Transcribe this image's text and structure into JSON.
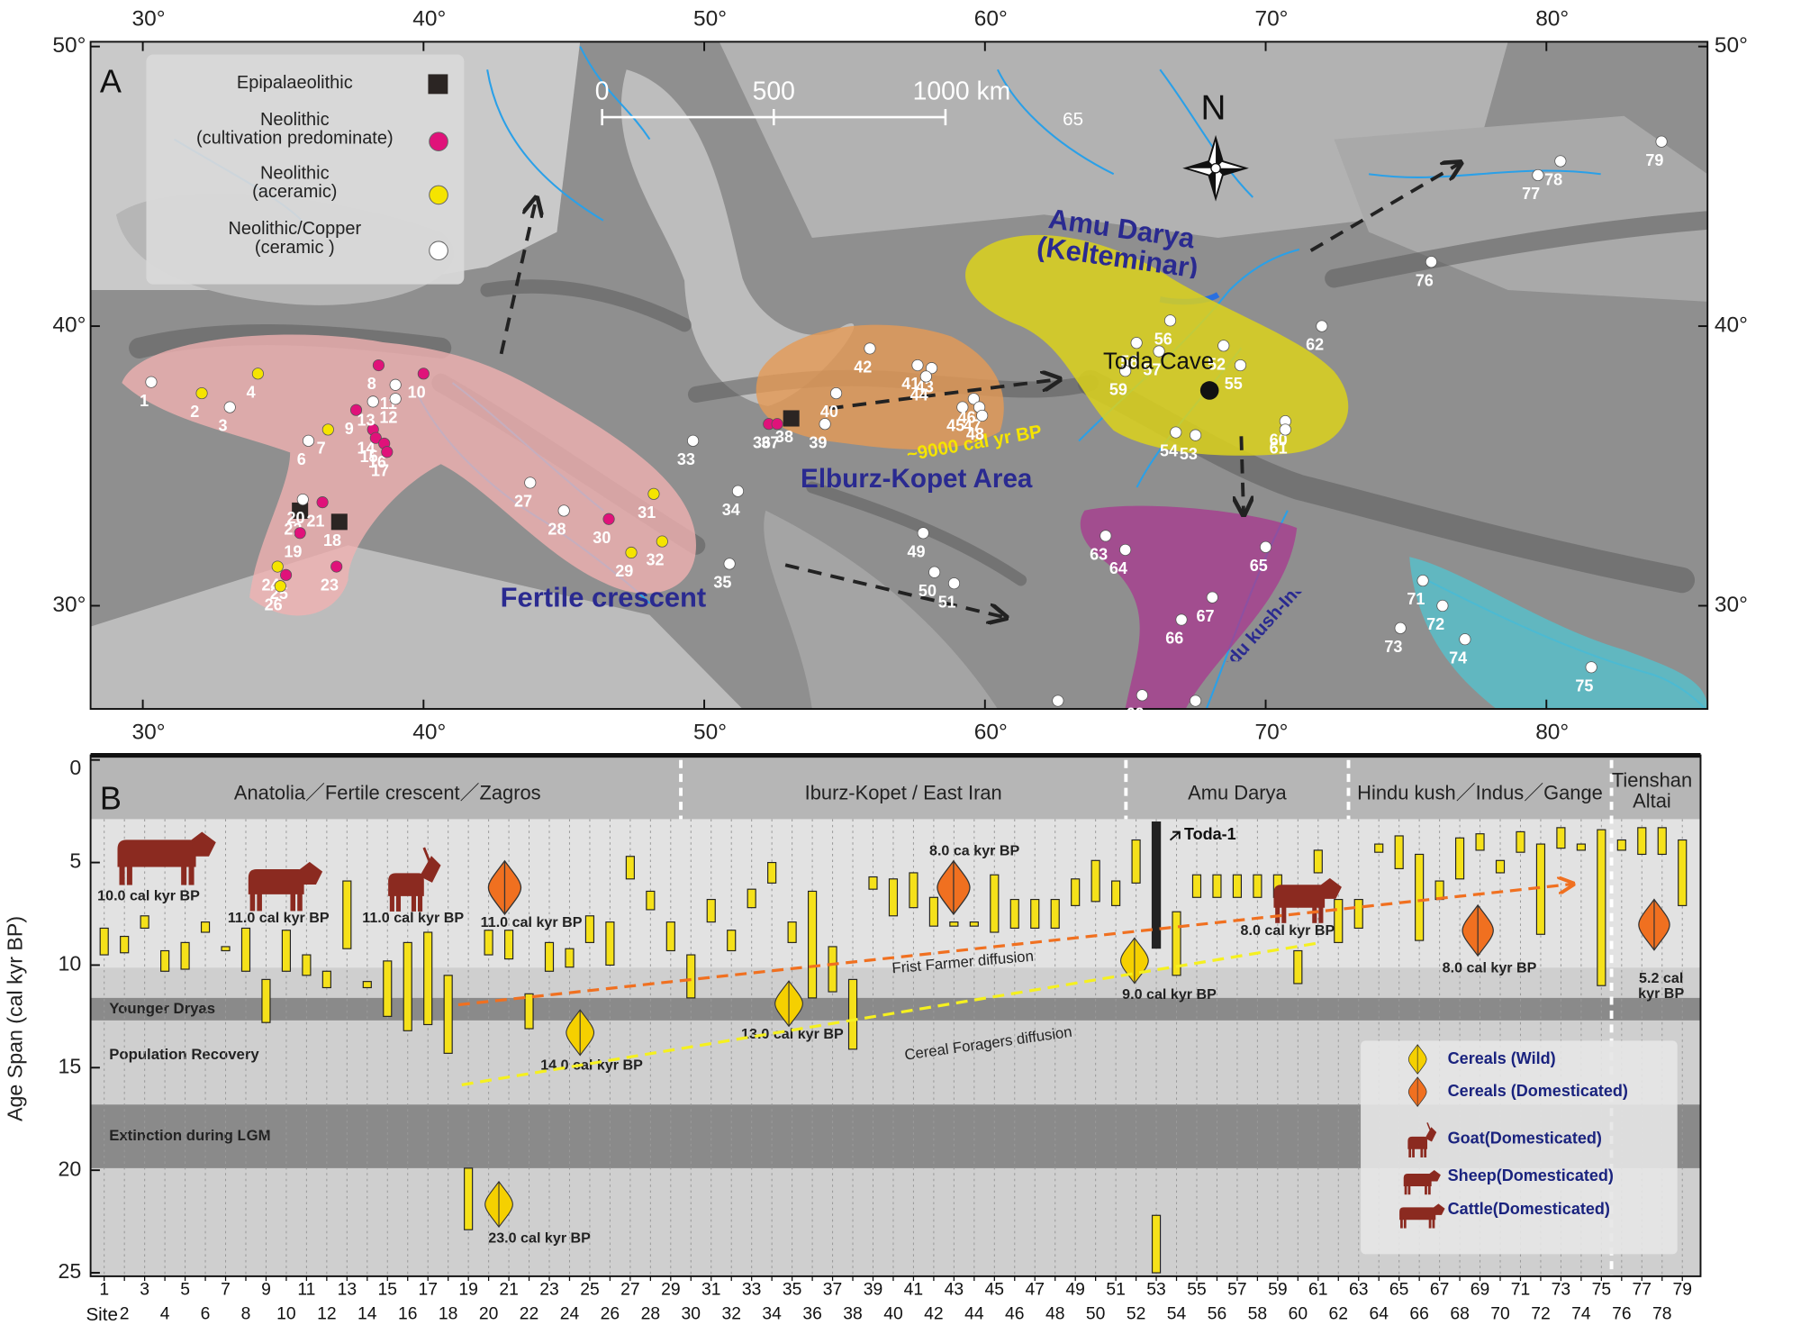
{
  "chart_data": [
    {
      "type": "scatter",
      "panel": "A",
      "xlim": [
        28.14,
        85.74
      ],
      "ylim": [
        26.31,
        50.17
      ],
      "xticks": [
        {
          "value": 30,
          "label": "30°"
        },
        {
          "value": 40,
          "label": "40°"
        },
        {
          "value": 50,
          "label": "50°"
        },
        {
          "value": 60,
          "label": "60°"
        },
        {
          "value": 70,
          "label": "70°"
        },
        {
          "value": 80,
          "label": "80°"
        }
      ],
      "yticks": [
        {
          "value": 30,
          "label": "30°"
        },
        {
          "value": 40,
          "label": "40°"
        },
        {
          "value": 50,
          "label": "50°"
        }
      ],
      "series": [
        {
          "name": "Epipalaeolithic",
          "color": "#2b2523",
          "marker": "square",
          "sites": [
            18,
            22,
            38
          ],
          "x": [
            37.0,
            35.6,
            53.1
          ],
          "y": [
            33.0,
            33.4,
            36.7
          ]
        },
        {
          "name": "Neolithic\n(cultivation predominate)",
          "color": "#e0127a",
          "marker": "circle",
          "sites": [
            8,
            9,
            10,
            14,
            15,
            16,
            17,
            19,
            21,
            23,
            25,
            30,
            36,
            37
          ],
          "x": [
            38.4,
            37.6,
            40.0,
            38.2,
            38.3,
            38.6,
            38.7,
            35.6,
            36.4,
            36.9,
            35.1,
            46.6,
            52.3,
            52.6
          ],
          "y": [
            38.6,
            37.0,
            38.3,
            36.3,
            36.0,
            35.8,
            35.5,
            32.6,
            33.7,
            31.4,
            31.1,
            33.1,
            36.5,
            36.5
          ]
        },
        {
          "name": "Neolithic\n(aceramic)",
          "color": "#f5e400",
          "marker": "circle",
          "sites": [
            2,
            4,
            7,
            24,
            26,
            29,
            31,
            32
          ],
          "x": [
            32.1,
            34.1,
            36.6,
            34.8,
            34.9,
            47.4,
            48.2,
            48.5
          ],
          "y": [
            37.6,
            38.3,
            36.3,
            31.4,
            30.7,
            31.9,
            34.0,
            32.3
          ]
        },
        {
          "name": "Neolithic/Copper\n(ceramic )",
          "color": "#ffffff",
          "marker": "circle",
          "sites": [
            1,
            3,
            6,
            11,
            12,
            13,
            20,
            27,
            28,
            33,
            34,
            35,
            39,
            40,
            41,
            42,
            43,
            44,
            45,
            46,
            47,
            48,
            49,
            50,
            51,
            52,
            53,
            54,
            55,
            56,
            57,
            58,
            59,
            60,
            61,
            62,
            63,
            64,
            65,
            66,
            67,
            68,
            69,
            70,
            71,
            72,
            73,
            74,
            75,
            76,
            77,
            78,
            79
          ],
          "x": [
            30.3,
            33.1,
            35.9,
            39.0,
            39.0,
            38.2,
            35.7,
            43.8,
            45.0,
            49.6,
            51.2,
            50.9,
            54.3,
            54.7,
            57.6,
            55.9,
            58.1,
            57.9,
            59.2,
            59.6,
            59.8,
            59.9,
            57.8,
            58.2,
            58.9,
            68.5,
            67.5,
            66.8,
            69.1,
            66.6,
            66.2,
            65.4,
            65.0,
            70.7,
            70.7,
            72.0,
            64.3,
            65.0,
            70.0,
            67.0,
            68.1,
            62.6,
            65.6,
            67.5,
            75.6,
            76.3,
            74.8,
            77.1,
            81.6,
            75.9,
            79.7,
            80.5,
            84.1
          ],
          "y": [
            38.0,
            37.1,
            35.9,
            37.9,
            37.4,
            37.3,
            33.8,
            34.4,
            33.4,
            35.9,
            34.1,
            31.5,
            36.5,
            37.6,
            38.6,
            39.2,
            38.5,
            38.2,
            37.1,
            37.4,
            37.1,
            36.8,
            32.6,
            31.2,
            30.8,
            39.3,
            36.1,
            36.2,
            38.6,
            40.2,
            39.1,
            39.4,
            38.4,
            36.6,
            36.3,
            40.0,
            32.5,
            32.0,
            32.1,
            29.5,
            30.3,
            26.6,
            26.8,
            26.6,
            30.9,
            30.0,
            29.2,
            28.8,
            27.8,
            42.3,
            45.4,
            45.9,
            46.6
          ]
        }
      ],
      "toda_cave": {
        "label": "Toda  Cave",
        "x": 68.0,
        "y": 37.7
      },
      "scale_bar": [
        0,
        500,
        {
          "value": 1000,
          "label": "1000 km"
        }
      ],
      "north": "N",
      "annotations": [
        "Fertile crescent",
        "Elburz-Kopet  Area",
        "Amu Darya\n(Kelteminar)",
        "Hindu kush-Indus",
        "~9000 cal yr BP",
        "65"
      ]
    },
    {
      "type": "range",
      "panel": "B",
      "x_label": "Site",
      "y_label": "Age Span (cal kyr BP)",
      "ylim": [
        0,
        25
      ],
      "yticks": [
        0,
        5,
        10,
        15,
        20,
        25
      ],
      "color": "#f5e11a",
      "categories": [
        1,
        2,
        3,
        4,
        5,
        6,
        7,
        8,
        9,
        10,
        11,
        12,
        13,
        14,
        15,
        16,
        17,
        18,
        19,
        20,
        21,
        22,
        23,
        24,
        25,
        26,
        27,
        28,
        29,
        30,
        31,
        32,
        33,
        34,
        35,
        36,
        37,
        38,
        39,
        40,
        41,
        42,
        43,
        44,
        45,
        46,
        47,
        48,
        49,
        50,
        51,
        52,
        53,
        54,
        55,
        56,
        57,
        58,
        59,
        60,
        61,
        62,
        63,
        64,
        65,
        66,
        67,
        68,
        69,
        70,
        71,
        72,
        73,
        74,
        75,
        76,
        77,
        78,
        79
      ],
      "start": [
        8.2,
        8.6,
        7.6,
        9.3,
        8.9,
        7.9,
        9.1,
        8.2,
        10.7,
        8.3,
        9.5,
        10.3,
        5.9,
        10.8,
        9.8,
        8.9,
        8.4,
        10.5,
        19.9,
        8.3,
        8.3,
        11.4,
        8.9,
        9.2,
        7.6,
        7.9,
        4.7,
        6.4,
        7.9,
        9.5,
        6.8,
        8.3,
        6.3,
        5.0,
        7.9,
        6.4,
        9.1,
        10.7,
        5.7,
        5.8,
        5.5,
        6.7,
        7.9,
        7.9,
        5.6,
        6.8,
        6.8,
        6.8,
        5.8,
        4.9,
        5.9,
        3.9,
        22.2,
        7.4,
        5.6,
        5.6,
        5.6,
        5.6,
        5.6,
        9.3,
        4.4,
        6.8,
        6.8,
        4.1,
        3.7,
        4.6,
        5.9,
        3.8,
        3.6,
        4.9,
        3.5,
        4.1,
        3.3,
        4.1,
        3.4,
        3.9,
        3.3,
        3.3,
        3.9
      ],
      "end": [
        9.5,
        9.4,
        8.2,
        10.3,
        10.2,
        8.4,
        9.3,
        10.3,
        12.8,
        10.3,
        10.5,
        11.1,
        9.2,
        11.1,
        12.5,
        13.2,
        12.9,
        14.3,
        22.9,
        9.5,
        9.7,
        13.1,
        10.3,
        10.1,
        8.9,
        10.0,
        5.8,
        7.3,
        9.3,
        11.6,
        7.9,
        9.3,
        7.2,
        6.0,
        8.9,
        11.6,
        11.3,
        14.1,
        6.3,
        7.6,
        7.2,
        8.1,
        8.1,
        8.1,
        8.4,
        8.2,
        8.2,
        8.2,
        7.1,
        6.9,
        7.1,
        6.0,
        25.0,
        10.5,
        6.7,
        6.7,
        6.7,
        6.7,
        6.7,
        10.9,
        5.5,
        8.9,
        8.2,
        4.5,
        5.3,
        8.8,
        6.8,
        5.8,
        4.4,
        5.5,
        4.5,
        8.5,
        4.3,
        4.4,
        11.0,
        4.4,
        4.6,
        4.6,
        7.1
      ],
      "toda_1": {
        "label": "Toda-1",
        "site": 53,
        "start": 3.0,
        "end": 9.2
      },
      "regions": [
        {
          "label": "Anatolia／Fertile crescent／Zagros",
          "from": 1,
          "to": 29
        },
        {
          "label": "Iburz-Kopet / East  Iran",
          "from": 30,
          "to": 51
        },
        {
          "label": "Amu Darya",
          "from": 52,
          "to": 62
        },
        {
          "label": "Hindu kush／Indus／Gange",
          "from": 63,
          "to": 75
        },
        {
          "label": "Tienshan\nAltai",
          "from": 76,
          "to": 79
        }
      ],
      "bands": [
        {
          "label": "Younger Dryas",
          "from": 11.6,
          "to": 12.7
        },
        {
          "label": "Population  Recovery",
          "from": 12.7,
          "to": 16.8
        },
        {
          "label": "Extinction during LGM",
          "from": 16.8,
          "to": 19.9
        }
      ],
      "markers": [
        {
          "kind": "cattle",
          "label": "10.0 cal kyr BP"
        },
        {
          "kind": "sheep",
          "label": "11.0 cal kyr BP"
        },
        {
          "kind": "goat",
          "label": "11.0 cal kyr BP"
        },
        {
          "kind": "domesticated",
          "label": "11.0  cal kyr BP"
        },
        {
          "kind": "wild",
          "label": "23.0  cal kyr BP"
        },
        {
          "kind": "wild",
          "label": "14.0  cal kyr BP"
        },
        {
          "kind": "wild",
          "label": "13.0  cal kyr BP"
        },
        {
          "kind": "domesticated",
          "label": "8.0   ca kyr BP"
        },
        {
          "kind": "wild",
          "label": "9.0  cal kyr BP"
        },
        {
          "kind": "sheep",
          "label": "8.0  cal kyr BP"
        },
        {
          "kind": "domesticated",
          "label": "8.0  cal kyr BP"
        },
        {
          "kind": "domesticated",
          "label": "5.2  cal\nkyr BP"
        }
      ],
      "diffusion": [
        {
          "label": "Frist Farmer diffusion",
          "color": "#f07020"
        },
        {
          "label": "Cereal Foragers diffusion",
          "color": "#f5f020"
        }
      ],
      "legend": [
        {
          "kind": "wild",
          "label": "Cereals (Wild)"
        },
        {
          "kind": "domesticated",
          "label": "Cereals (Domesticated)"
        },
        {
          "kind": "goat",
          "label": "Goat(Domesticated)"
        },
        {
          "kind": "sheep",
          "label": "Sheep(Domesticated)"
        },
        {
          "kind": "cattle",
          "label": "Cattle(Domesticated)"
        }
      ]
    }
  ]
}
